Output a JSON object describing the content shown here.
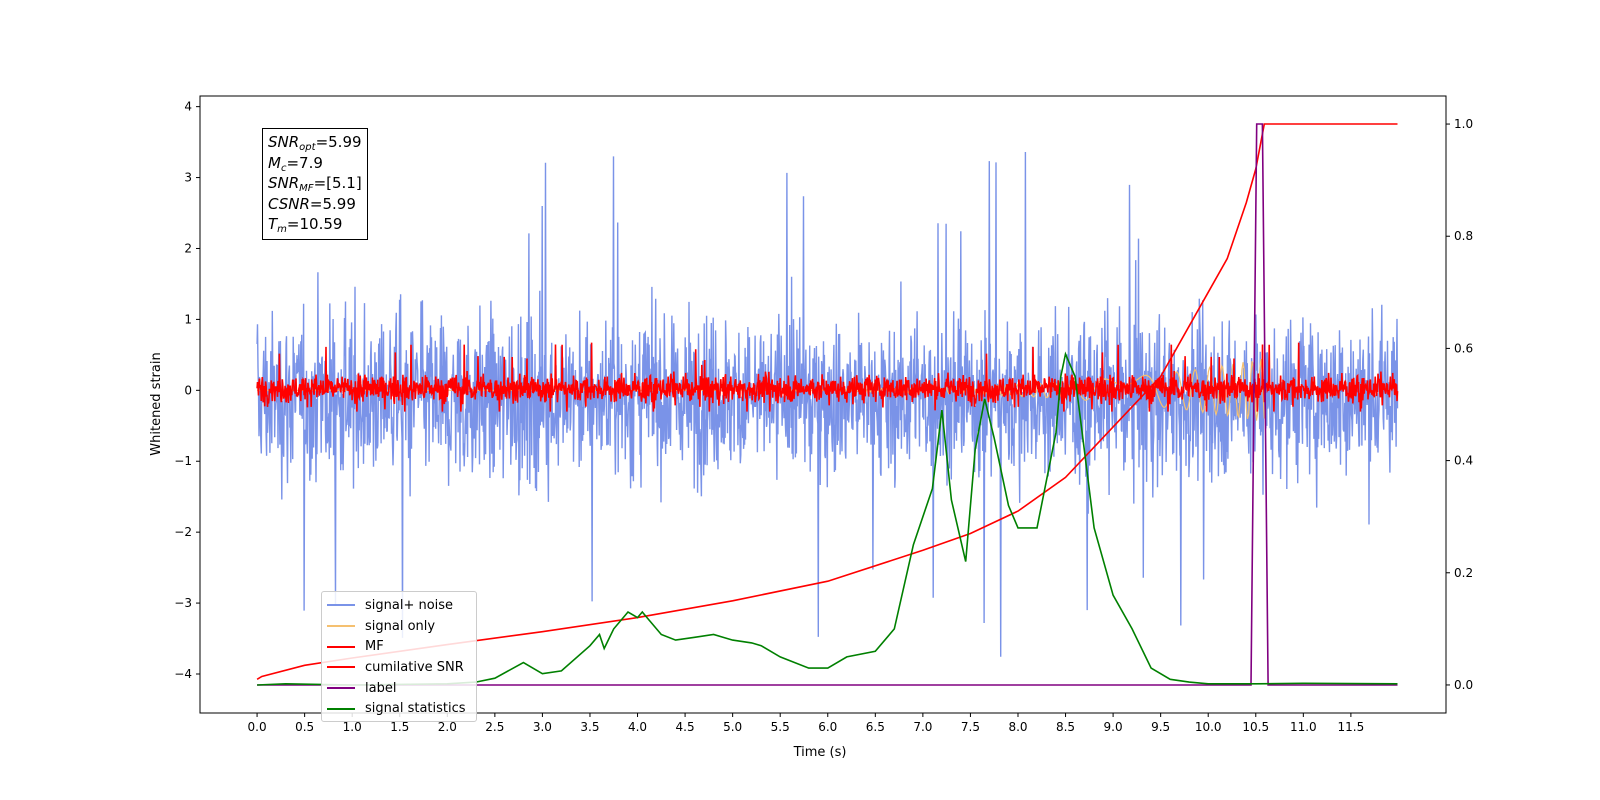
{
  "chart_data": {
    "type": "line",
    "xlabel": "Time (s)",
    "ylabel": "Whitened strain",
    "xlim": [
      -0.6,
      12.5
    ],
    "ylim": [
      -4.55,
      4.15
    ],
    "y2lim": [
      -0.05,
      1.05
    ],
    "x_ticks": [
      0.0,
      0.5,
      1.0,
      1.5,
      2.0,
      2.5,
      3.0,
      3.5,
      4.0,
      4.5,
      5.0,
      5.5,
      6.0,
      6.5,
      7.0,
      7.5,
      8.0,
      8.5,
      9.0,
      9.5,
      10.0,
      10.5,
      11.0,
      11.5
    ],
    "x_tick_labels": [
      "0.0",
      "0.5",
      "1.0",
      "1.5",
      "2.0",
      "2.5",
      "3.0",
      "3.5",
      "4.0",
      "4.5",
      "5.0",
      "5.5",
      "6.0",
      "6.5",
      "7.0",
      "7.5",
      "8.0",
      "8.5",
      "9.0",
      "9.5",
      "10.0",
      "10.5",
      "11.0",
      "11.5"
    ],
    "y_ticks": [
      -4,
      -3,
      -2,
      -1,
      0,
      1,
      2,
      3,
      4
    ],
    "y_tick_labels": [
      "−4",
      "−3",
      "−2",
      "−1",
      "0",
      "1",
      "2",
      "3",
      "4"
    ],
    "y2_ticks": [
      0.0,
      0.2,
      0.4,
      0.6,
      0.8,
      1.0
    ],
    "y2_tick_labels": [
      "0.0",
      "0.2",
      "0.4",
      "0.6",
      "0.8",
      "1.0"
    ],
    "grid": false,
    "legend_placement": "lower-left",
    "series": [
      {
        "name": "signal+ noise",
        "color": "#7a93e8",
        "axis": "left",
        "kind": "noise",
        "x_range": [
          0.0,
          11.99
        ],
        "typical_range": [
          -1.7,
          1.5
        ],
        "min": -4.1,
        "max": 3.78
      },
      {
        "name": "signal only",
        "color": "#f5c070",
        "axis": "left",
        "kind": "chirp",
        "x_range": [
          0.0,
          10.59
        ],
        "peak_amplitude": 0.45
      },
      {
        "name": "MF",
        "color": "#ff0000",
        "axis": "left",
        "kind": "noise",
        "x_range": [
          0.0,
          11.99
        ],
        "typical_range": [
          -0.25,
          0.3
        ],
        "min": -0.3,
        "max": 1.0
      },
      {
        "name": "cumilative SNR",
        "color": "#ff0000",
        "axis": "right",
        "x": [
          0.0,
          0.05,
          0.5,
          1.0,
          2.0,
          3.0,
          4.0,
          5.0,
          6.0,
          7.0,
          7.5,
          8.0,
          8.5,
          9.0,
          9.5,
          10.0,
          10.2,
          10.4,
          10.5,
          10.59,
          11.0,
          11.5,
          11.99
        ],
        "y": [
          0.01,
          0.015,
          0.035,
          0.048,
          0.072,
          0.095,
          0.12,
          0.15,
          0.185,
          0.24,
          0.27,
          0.31,
          0.37,
          0.46,
          0.55,
          0.7,
          0.76,
          0.86,
          0.92,
          1.0,
          1.0,
          1.0,
          1.0
        ]
      },
      {
        "name": "label",
        "color": "#800080",
        "axis": "right",
        "x": [
          0.0,
          10.45,
          10.51,
          10.57,
          10.63,
          11.99
        ],
        "y": [
          0.0,
          0.0,
          1.0,
          1.0,
          0.0,
          0.0
        ]
      },
      {
        "name": "signal statistics",
        "color": "#008000",
        "axis": "right",
        "x": [
          0.0,
          0.3,
          1.0,
          2.0,
          2.3,
          2.5,
          2.8,
          3.0,
          3.2,
          3.5,
          3.6,
          3.65,
          3.75,
          3.9,
          4.0,
          4.05,
          4.1,
          4.25,
          4.4,
          4.6,
          4.8,
          5.0,
          5.2,
          5.3,
          5.5,
          5.8,
          6.0,
          6.2,
          6.5,
          6.7,
          6.9,
          7.1,
          7.2,
          7.3,
          7.45,
          7.55,
          7.65,
          7.75,
          7.9,
          8.0,
          8.2,
          8.4,
          8.45,
          8.5,
          8.6,
          8.8,
          9.0,
          9.2,
          9.4,
          9.6,
          9.8,
          10.0,
          10.5,
          11.0,
          11.99
        ],
        "y": [
          0.0,
          0.002,
          0.0,
          0.002,
          0.005,
          0.012,
          0.04,
          0.02,
          0.025,
          0.07,
          0.09,
          0.065,
          0.1,
          0.13,
          0.12,
          0.13,
          0.12,
          0.09,
          0.08,
          0.085,
          0.09,
          0.08,
          0.075,
          0.07,
          0.05,
          0.03,
          0.03,
          0.05,
          0.06,
          0.1,
          0.25,
          0.35,
          0.49,
          0.33,
          0.22,
          0.42,
          0.51,
          0.44,
          0.32,
          0.28,
          0.28,
          0.45,
          0.55,
          0.59,
          0.55,
          0.28,
          0.16,
          0.1,
          0.03,
          0.01,
          0.005,
          0.002,
          0.002,
          0.003,
          0.002
        ]
      }
    ]
  },
  "annotation": {
    "lines": [
      {
        "sym": "SNR",
        "sub": "opt",
        "value": "=5.99"
      },
      {
        "sym": "M",
        "sub": "c",
        "value": "=7.9"
      },
      {
        "sym": "SNR",
        "sub": "MF",
        "value": "=[5.1]"
      },
      {
        "sym": "CSNR",
        "sub": "",
        "value": "=5.99"
      },
      {
        "sym": "T",
        "sub": "m",
        "value": "=10.59"
      }
    ]
  }
}
